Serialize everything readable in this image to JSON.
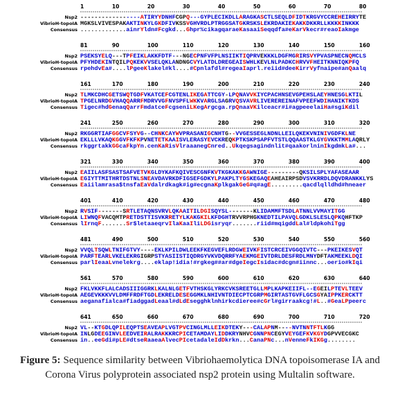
{
  "row_names": [
    "Nsp2",
    "VibrioH-topoIA",
    "Consensus"
  ],
  "blocks": [
    {
      "ruler": [
        1,
        10,
        20,
        30,
        40,
        50,
        60,
        70,
        80
      ],
      "rows": [
        "-----------------ATIRYYDNHFCGPQ---GYPLECIKDLLARAGKASCTLSEQLDFIDTKRGVYCCREHEIRRYTE",
        "MGKSLVIVESPAKAKTINKYLGKDFIVKSSVGHVRDLPTRGGSATGKRSKSLEKRDAKIEKAKKDKKRLLKKKKINKKK",
        ".............ainrYldn#Fcgkd...Ghpr%cikagqaraeKasaaiSeqqdfa#eKarVkecr#reaoIakmge"
      ]
    },
    {
      "ruler": [
        81,
        90,
        100,
        110,
        120,
        130,
        140,
        150,
        160
      ],
      "rows": [
        "PSEKSYELQ---TPFEIKLAKKFDTF---NGECPNFVFPLNSIIKTIQPRVEKKKLDGFMGRIRSVYPVASPNECNQMCLS",
        "PFYHDEKINTQILPQKEKVVSELQKLANDNGCVYLATDLDREGEAISWHLKEVLNLPADKCHRVVFHEITKNNIQKPFQ",
        "rpehdvEa#....lPgeeKlakel#kl....#Cpnlafdl#regeaIaprl.reiid#deeKirrVyfnaipe#anQaalq"
      ]
    },
    {
      "ruler": [
        161,
        170,
        180,
        190,
        200,
        210,
        220,
        230,
        240
      ],
      "rows": [
        "TLMKCDHCGETSWQTGDFVKATCEFCGTENLIKEGATTCGY-LPQNAVVKIYCPACHNSEVGPEHSLAEYHNESGLKTIL",
        "TPGELNRDGVHAQQARRFMDRVVGFNVSPFLWKKVARGLSAGRVQSVAVRLIVEREREINAFVPEEFWDIHANIKTKDS",
        "Tigec#hdGenaqQarrFmdatceFcgseniLKegArgcga.rpQnaaVKilceacr#i#agpeeelaiHa#sgiKdil"
      ]
    },
    {
      "ruler": [
        241,
        250,
        260,
        270,
        280,
        290,
        300,
        310,
        320
      ],
      "rows": [
        "RKGGRTIAFGGCVFSYVG--CHNKCAYWVPRASANIGCNHTG--VVGESSEGLNDNLLEILQKEKVNINIVGDFKLNE",
        "EKLLLVKAQKGGVFKFKPVNETETKAAISVLERASYEVCKREQKPTKSKPSAPFVTSTLQQAASTKLGYGVKKTMMLAQRLY",
        "rkggrtakkGGcaFkpYn.cenKaRisVlraaanegCnred..Ukqegsagindnlit#qaakorlninIkgdmkLa#..."
      ]
    },
    {
      "ruler": [
        321,
        330,
        340,
        350,
        360,
        370,
        380,
        390,
        400
      ],
      "rows": [
        "EAIILASFSASTSAFVETVKGLDYKAFKQIVESCGNFKVTKGKAKKGAWNIGE---------QKSILSPLYAFASEAAR",
        "EGIYTTMITHRTDSTNLSNEAVDAVRKDFIGSEFGDKYLPAKPLTYGSKEGAQEAHEAIRPSDVSVKRRDLDQVDRANKKLYS",
        "Eaiilamrasa$tnsfaEaVdalrdkagk#ig#ecgnaKplkgakGeG#q#agE.........qacdlqlldhd#hneaer"
      ]
    },
    {
      "ruler": [
        401,
        410,
        420,
        430,
        440,
        450,
        460,
        470,
        480
      ],
      "rows": [
        "RVSIF-------SRTLETAQNSVRVLQKAAITILDGISQYSL-------KLIDAMMFTSDLATNNLVVMAYITGG",
        "LIWNQFVACQMTPRETDSTTISVKRRETYLKAKGKILKFDGHTRVVRPHGKNEDTILPAVQLGDKLSLESLQPKQHFTKP",
        "lIrnqF.......Sr$letaaeqrvIlaKaaIliLDGisryqr.......riid#mqigddLal#ldpkohiTgg"
      ]
    },
    {
      "ruler": [
        481,
        490,
        500,
        510,
        520,
        530,
        540,
        550,
        560
      ],
      "rows": [
        "VVQLTSQWLTNIFGTVY----EKLKPILDWLEEKFKEGVEFLRDGWEIVKFISTCRCEIVGGQIVTC---PKEIKESVQT",
        "PARFTEARLVKELEKRGIGRPSTYASIISTIQDRGYVKVDQRRFYAEKMGEIVTDRLDESFRDLMNYDFTAKMEEKLDQI",
        "parlIeaaLvnelekrg....eklap!idia!#rgkeg##ar#dgeIegcIsidac#dcgn#iinnc...oerio#kIqi"
      ]
    },
    {
      "ruler": [
        561,
        570,
        580,
        590,
        600,
        610,
        620,
        630,
        640
      ],
      "rows": [
        "FKLVKKFLALCADSIIIGGRKLKALNLGETFVTHSKGLYRKCVKSREETGLLMPLKAPKEIIFL--EGEILPTEVLTEEV",
        "AEGEVKKKVVLDMFFRDFTGDLEKRELDESEGGMKLNHIVNTDIECPTCGRPMGIRTASTGVFLGCSGYAIPPKERCKTT",
        "aeganafialca#fiadggadLeaal#dLdEsegghklnhirkcdieree#cGrl#girraakcg!#L..#GeaLPpeerc"
      ]
    },
    {
      "ruler": [
        641,
        650,
        660,
        670,
        680,
        690,
        700,
        710,
        720
      ],
      "rows": [
        "VL--KTGDLQPILEQPTSEAVEAPLVGTPVCINGLMLLEIKDTEKY---CALAPNM----NVTNNTFTLKGG",
        "INLGDEEGINVLEEDVEIRALRAKKKRCPICETAMDAYLIDDKRYNHVCGNNPNCEGYVEYGEFKVKGYDGPVVECGKC",
        "in..eeGdi#pLE#dtseRaaeaAlvecPIcetadaleIdDkrkn...CanaPNc...nVenneFkIKGg........"
      ]
    }
  ],
  "caption": {
    "label": "Figure 5:",
    "text": "Sequence similarity between Vibriohaemolytica DNA topoisomerase IA and Corona Virus polyprotein associated nsp2 protein using Multalin software."
  }
}
